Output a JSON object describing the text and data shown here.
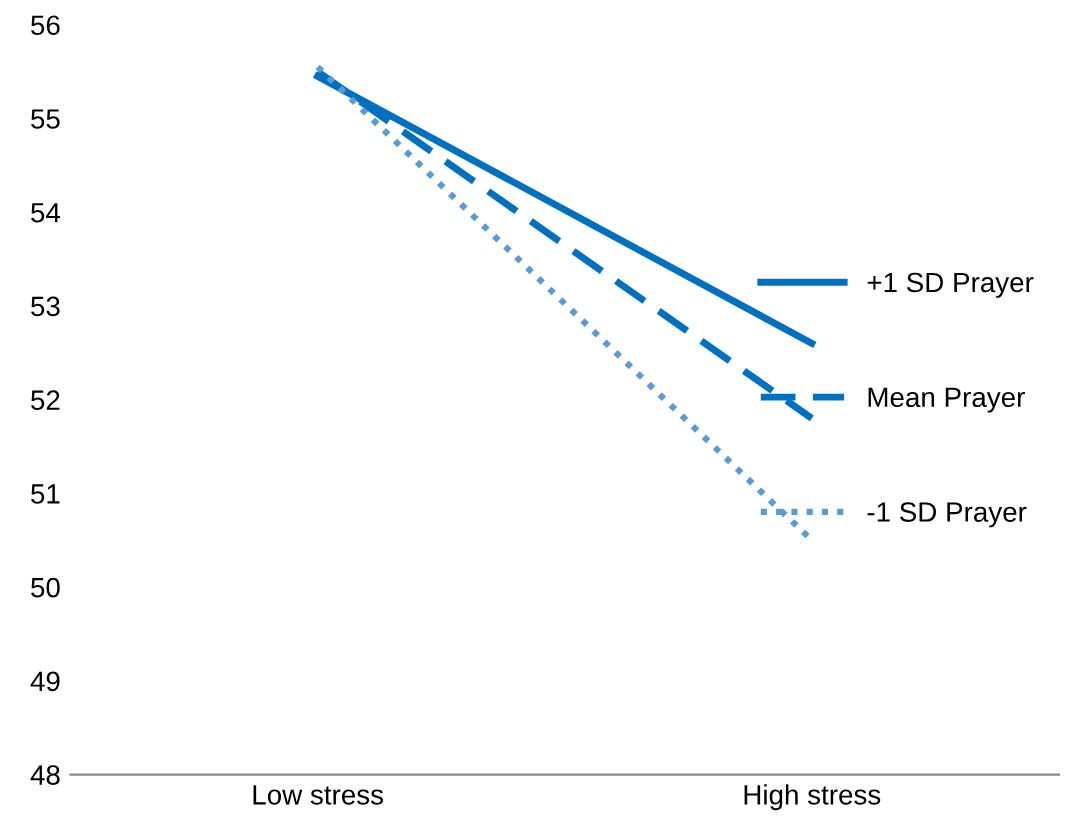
{
  "chart_data": {
    "type": "line",
    "categories": [
      "Low stress",
      "High stress"
    ],
    "series": [
      {
        "name": "+1 SD Prayer",
        "color": "#0070c0",
        "values": [
          55.45,
          52.6
        ],
        "line_style": "solid"
      },
      {
        "name": "Mean Prayer",
        "color": "#0070c0",
        "values": [
          55.5,
          51.8
        ],
        "line_style": "dashed"
      },
      {
        "name": "-1 SD Prayer",
        "color": "#5b9bd5",
        "values": [
          55.55,
          50.5
        ],
        "line_style": "dotted"
      }
    ],
    "ylim": [
      48,
      56
    ],
    "yticks": [
      48,
      49,
      50,
      51,
      52,
      53,
      54,
      55,
      56
    ],
    "grid": false,
    "legend": "right",
    "marker": "none"
  }
}
